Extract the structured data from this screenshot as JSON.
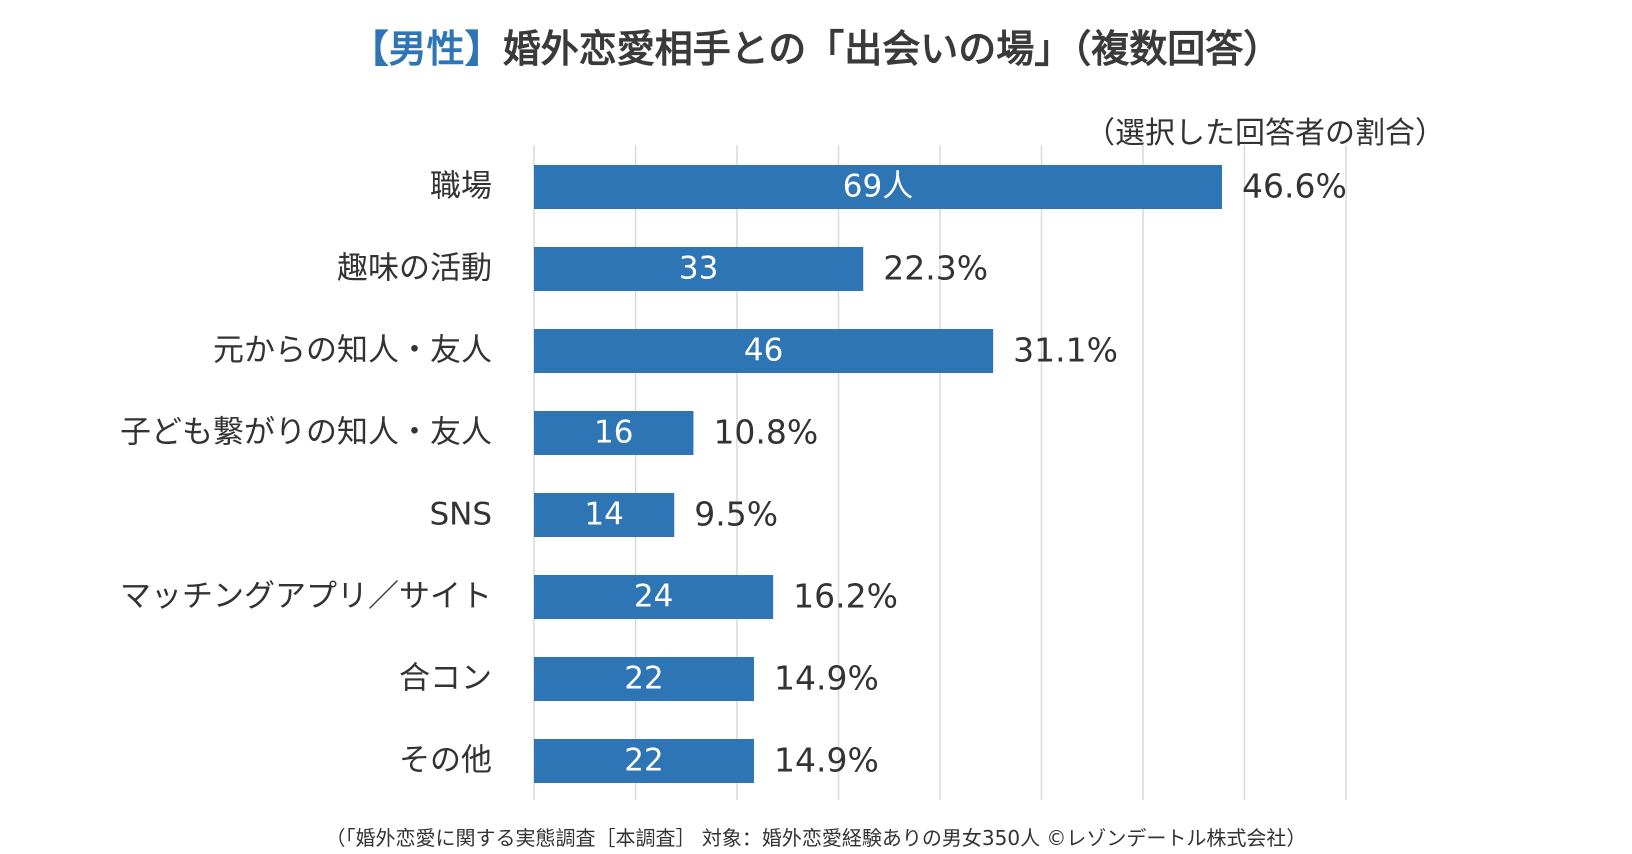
{
  "title": {
    "highlight": "【男性】",
    "main": "婚外恋愛相手との「出会いの場」（複数回答）"
  },
  "unit_note": "（選択した回答者の割合）",
  "footnote": "（「婚外恋愛に関する実態調査［本調査］ 対象：婚外恋愛経験ありの男女350人 ©レゾンデートル株式会社）",
  "colors": {
    "bar": "#2e75b6",
    "highlight": "#2e75b6",
    "grid": "#d9d9d9"
  },
  "chart_data": {
    "type": "bar",
    "orientation": "horizontal",
    "categories": [
      "職場",
      "趣味の活動",
      "元からの知人・友人",
      "子ども繋がりの知人・友人",
      "SNS",
      "マッチングアプリ／サイト",
      "合コン",
      "その他"
    ],
    "counts": [
      "69人",
      "33",
      "46",
      "16",
      "14",
      "24",
      "22",
      "22"
    ],
    "values": [
      46.6,
      22.3,
      31.1,
      10.8,
      9.5,
      16.2,
      14.9,
      14.9
    ],
    "value_labels": [
      "46.6%",
      "22.3%",
      "31.1%",
      "10.8%",
      "9.5%",
      "16.2%",
      "14.9%",
      "14.9%"
    ],
    "xlim": [
      0,
      55
    ],
    "grid_step": 6.875,
    "grid": true
  }
}
